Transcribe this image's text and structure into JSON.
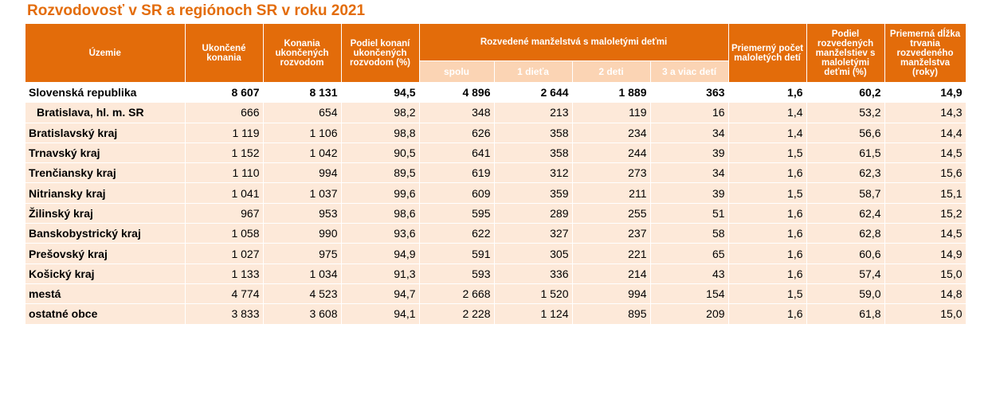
{
  "title": "Rozvodovosť v SR a regiónoch SR v roku 2021",
  "headers": {
    "territory": "Územie",
    "completed": "Ukončené konania",
    "divorce_proceedings": "Konania ukončených rozvodom",
    "share_divorce": "Podiel konaní ukončených rozvodom (%)",
    "group_minors": "Rozvedené manželstvá s maloletými deťmi",
    "total": "spolu",
    "one_child": "1 dieťa",
    "two_children": "2 deti",
    "three_plus": "3 a viac detí",
    "avg_minors": "Priemerný počet maloletých detí",
    "share_minors": "Podiel rozvedených manželstiev s maloletými deťmi  (%)",
    "avg_duration": "Priemerná dĺžka trvania rozvedeného manželstva (roky)"
  },
  "rows": [
    {
      "name": "Slovenská republika",
      "v": [
        "8 607",
        "8 131",
        "94,5",
        "4 896",
        "2 644",
        "1 889",
        "363",
        "1,6",
        "60,2",
        "14,9"
      ]
    },
    {
      "name": "Bratislava,  hl. m. SR",
      "v": [
        "666",
        "654",
        "98,2",
        "348",
        "213",
        "119",
        "16",
        "1,4",
        "53,2",
        "14,3"
      ]
    },
    {
      "name": "Bratislavský kraj",
      "v": [
        "1 119",
        "1 106",
        "98,8",
        "626",
        "358",
        "234",
        "34",
        "1,4",
        "56,6",
        "14,4"
      ]
    },
    {
      "name": "Trnavský kraj",
      "v": [
        "1 152",
        "1 042",
        "90,5",
        "641",
        "358",
        "244",
        "39",
        "1,5",
        "61,5",
        "14,5"
      ]
    },
    {
      "name": "Trenčiansky kraj",
      "v": [
        "1 110",
        "994",
        "89,5",
        "619",
        "312",
        "273",
        "34",
        "1,6",
        "62,3",
        "15,6"
      ]
    },
    {
      "name": "Nitriansky kraj",
      "v": [
        "1 041",
        "1 037",
        "99,6",
        "609",
        "359",
        "211",
        "39",
        "1,5",
        "58,7",
        "15,1"
      ]
    },
    {
      "name": "Žilinský kraj",
      "v": [
        "967",
        "953",
        "98,6",
        "595",
        "289",
        "255",
        "51",
        "1,6",
        "62,4",
        "15,2"
      ]
    },
    {
      "name": "Banskobystrický kraj",
      "v": [
        "1 058",
        "990",
        "93,6",
        "622",
        "327",
        "237",
        "58",
        "1,6",
        "62,8",
        "14,5"
      ]
    },
    {
      "name": "Prešovský kraj",
      "v": [
        "1 027",
        "975",
        "94,9",
        "591",
        "305",
        "221",
        "65",
        "1,6",
        "60,6",
        "14,9"
      ]
    },
    {
      "name": "Košický kraj",
      "v": [
        "1 133",
        "1 034",
        "91,3",
        "593",
        "336",
        "214",
        "43",
        "1,6",
        "57,4",
        "15,0"
      ]
    },
    {
      "name": "mestá",
      "v": [
        "4 774",
        "4 523",
        "94,7",
        "2 668",
        "1 520",
        "994",
        "154",
        "1,5",
        "59,0",
        "14,8"
      ]
    },
    {
      "name": "ostatné obce",
      "v": [
        "3 833",
        "3 608",
        "94,1",
        "2 228",
        "1 124",
        "895",
        "209",
        "1,6",
        "61,8",
        "15,0"
      ]
    }
  ],
  "colors": {
    "accent": "#e36c0a",
    "sub_header": "#fbd4b4",
    "row_shade": "#fde9d9"
  }
}
